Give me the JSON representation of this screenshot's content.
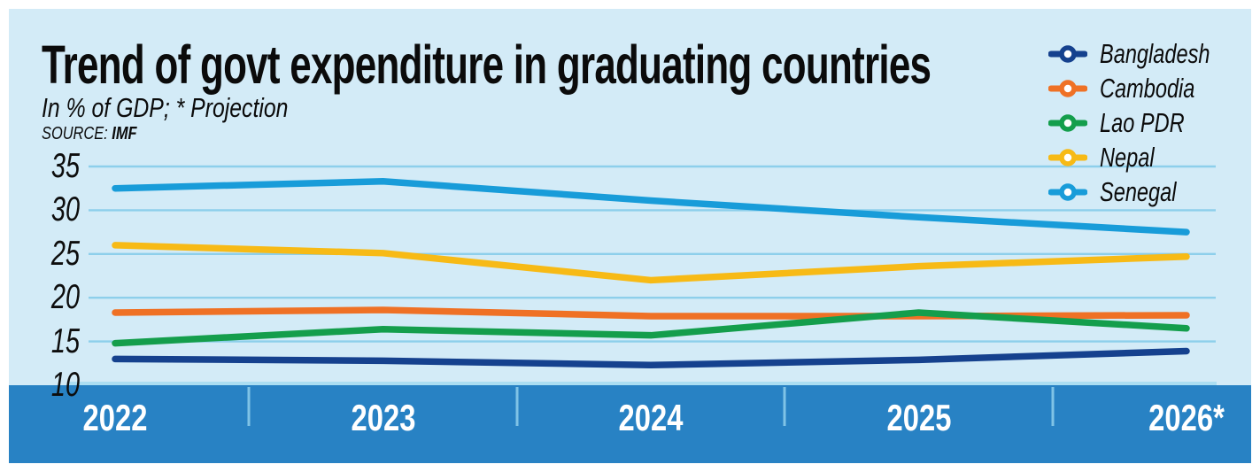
{
  "header": {
    "title": "Trend of govt expenditure in graduating countries",
    "subtitle": "In % of GDP; * Projection",
    "source_label": "SOURCE:",
    "source_value": "IMF"
  },
  "chart_data": {
    "type": "line",
    "title": "Trend of govt expenditure in graduating countries",
    "subtitle": "In % of GDP; * Projection",
    "source": "SOURCE: IMF",
    "categories": [
      "2022",
      "2023",
      "2024",
      "2025",
      "2026*"
    ],
    "series": [
      {
        "name": "Bangladesh",
        "color": "#15418e",
        "values": [
          13.0,
          12.8,
          12.3,
          12.9,
          13.9
        ]
      },
      {
        "name": "Cambodia",
        "color": "#ef7125",
        "values": [
          18.3,
          18.6,
          17.9,
          17.9,
          18.0
        ]
      },
      {
        "name": "Lao PDR",
        "color": "#149e4c",
        "values": [
          14.8,
          16.4,
          15.7,
          18.3,
          16.5
        ]
      },
      {
        "name": "Nepal",
        "color": "#f7ba16",
        "values": [
          26.0,
          25.1,
          22.0,
          23.6,
          24.7
        ]
      },
      {
        "name": "Senegal",
        "color": "#189cd9",
        "values": [
          32.5,
          33.3,
          31.1,
          29.2,
          27.5
        ]
      }
    ],
    "xlabel": "",
    "ylabel": "",
    "ylim": [
      10,
      35
    ],
    "yticks": [
      35,
      30,
      25,
      20,
      15,
      10
    ],
    "grid": true,
    "legend_position": "top-right",
    "note": "* Projection applies to 2026"
  },
  "colors": {
    "background": "#ffffff",
    "card": "#d3ebf7",
    "gridline": "#8dcfeb",
    "band": "#2882c4",
    "band_top_gridline": "#abdef2",
    "year_separator": "#7fc3e6",
    "axis_text": "#0d0d0d",
    "year_text": "#ffffff"
  }
}
